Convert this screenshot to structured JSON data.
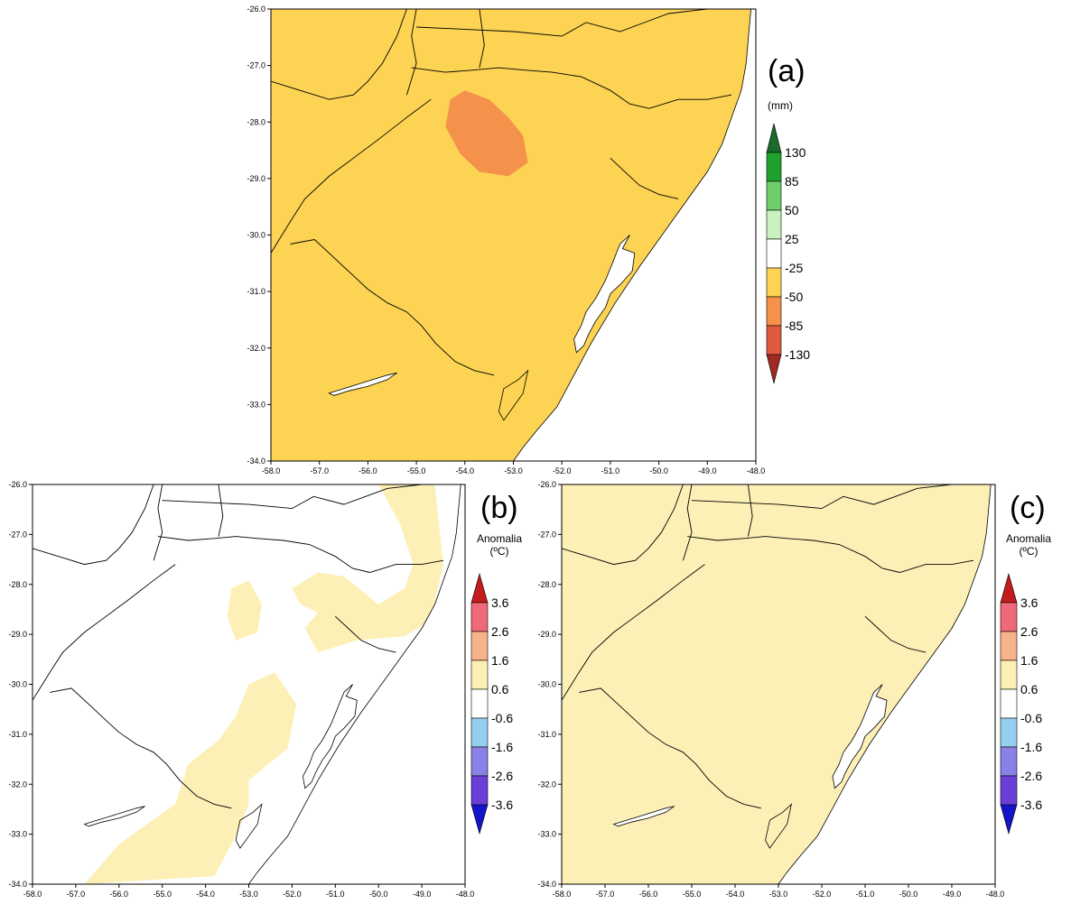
{
  "colors": {
    "precip_fill": "#fcd353",
    "precip_strong": "#f4924b",
    "temp_fill": "#fdf0b6",
    "outline": "#000000"
  },
  "panels": [
    {
      "id": "a",
      "letter": "(a)",
      "legend_title": [
        "(mm)"
      ],
      "legend_labels": [
        "130",
        "85",
        "50",
        "25",
        "-25",
        "-50",
        "-85",
        "-130"
      ],
      "legend_colors": [
        "#1b6b2a",
        "#1fa22d",
        "#6fcd6c",
        "#c8f3c0",
        "#ffffff",
        "#fcd353",
        "#f4924b",
        "#df5a3f",
        "#9e2a22"
      ],
      "x_ticks": [
        "-58.0",
        "-57.0",
        "-56.0",
        "-55.0",
        "-54.0",
        "-53.0",
        "-52.0",
        "-51.0",
        "-50.0",
        "-49.0",
        "-48.0"
      ],
      "y_ticks": [
        "-26.0",
        "-27.0",
        "-28.0",
        "-29.0",
        "-30.0",
        "-31.0",
        "-32.0",
        "-33.0",
        "-34.0"
      ]
    },
    {
      "id": "b",
      "letter": "(b)",
      "legend_title": [
        "Anomalia",
        "(ºC)"
      ],
      "legend_labels": [
        "3.6",
        "2.6",
        "1.6",
        "0.6",
        "-0.6",
        "-1.6",
        "-2.6",
        "-3.6"
      ],
      "legend_colors": [
        "#c41c1c",
        "#ef6a78",
        "#f7b38b",
        "#fdf0b6",
        "#ffffff",
        "#95cff0",
        "#8a80e6",
        "#6a3fd8",
        "#1414c8"
      ],
      "x_ticks": [
        "-58.0",
        "-57.0",
        "-56.0",
        "-55.0",
        "-54.0",
        "-53.0",
        "-52.0",
        "-51.0",
        "-50.0",
        "-49.0",
        "-48.0"
      ],
      "y_ticks": [
        "-26.0",
        "-27.0",
        "-28.0",
        "-29.0",
        "-30.0",
        "-31.0",
        "-32.0",
        "-33.0",
        "-34.0"
      ]
    },
    {
      "id": "c",
      "letter": "(c)",
      "legend_title": [
        "Anomalia",
        "(ºC)"
      ],
      "legend_labels": [
        "3.6",
        "2.6",
        "1.6",
        "0.6",
        "-0.6",
        "-1.6",
        "-2.6",
        "-3.6"
      ],
      "legend_colors": [
        "#c41c1c",
        "#ef6a78",
        "#f7b38b",
        "#fdf0b6",
        "#ffffff",
        "#95cff0",
        "#8a80e6",
        "#6a3fd8",
        "#1414c8"
      ],
      "x_ticks": [
        "-58.0",
        "-57.0",
        "-56.0",
        "-55.0",
        "-54.0",
        "-53.0",
        "-52.0",
        "-51.0",
        "-50.0",
        "-49.0",
        "-48.0"
      ],
      "y_ticks": [
        "-26.0",
        "-27.0",
        "-28.0",
        "-29.0",
        "-30.0",
        "-31.0",
        "-32.0",
        "-33.0",
        "-34.0"
      ]
    }
  ]
}
